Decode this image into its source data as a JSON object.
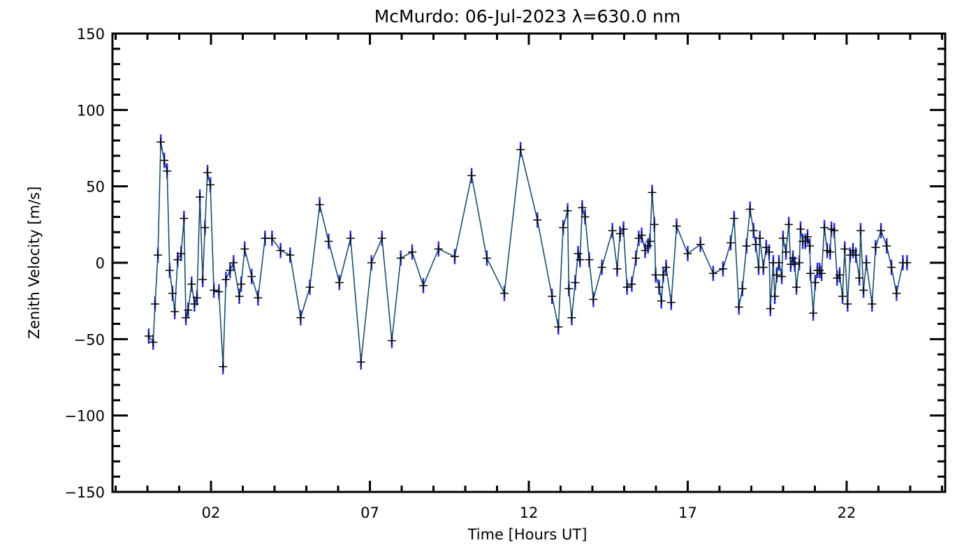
{
  "chart_data": {
    "type": "line",
    "title": "McMurdo: 06-Jul-2023 λ=630.0 nm",
    "xlabel": "Time [Hours UT]",
    "ylabel": "Zenith Velocity [m/s]",
    "xlim": [
      -1.1,
      25.1
    ],
    "ylim": [
      -150,
      150
    ],
    "x_ticks": [
      2,
      7,
      12,
      17,
      22
    ],
    "x_tick_labels": [
      "02",
      "07",
      "12",
      "17",
      "22"
    ],
    "x_minor_step": 1,
    "y_ticks": [
      -150,
      -100,
      -50,
      0,
      50,
      100,
      150
    ],
    "y_tick_labels": [
      "−150",
      "−100",
      "−50",
      "0",
      "50",
      "100",
      "150"
    ],
    "y_minor_step": 10,
    "grid": false,
    "error_default": 5,
    "colors": {
      "line": "#1b4d6b",
      "error": "#2b2bf5",
      "marker": "#000000",
      "axis": "#000000"
    },
    "series": [
      {
        "name": "Zenith Velocity",
        "x": [
          0.04,
          0.18,
          0.24,
          0.33,
          0.42,
          0.53,
          0.62,
          0.7,
          0.79,
          0.86,
          0.95,
          1.06,
          1.15,
          1.21,
          1.28,
          1.39,
          1.48,
          1.56,
          1.65,
          1.74,
          1.81,
          1.89,
          1.98,
          2.09,
          2.25,
          2.38,
          2.47,
          2.6,
          2.71,
          2.89,
          2.95,
          3.06,
          3.28,
          3.48,
          3.7,
          3.92,
          4.19,
          4.49,
          4.82,
          5.11,
          5.42,
          5.7,
          6.04,
          6.39,
          6.72,
          7.05,
          7.38,
          7.69,
          7.97,
          8.33,
          8.68,
          9.16,
          9.67,
          10.2,
          10.68,
          11.23,
          11.74,
          12.27,
          12.73,
          12.93,
          13.08,
          13.22,
          13.26,
          13.35,
          13.46,
          13.55,
          13.61,
          13.68,
          13.77,
          13.9,
          14.03,
          14.3,
          14.63,
          14.78,
          14.87,
          14.98,
          15.09,
          15.24,
          15.37,
          15.46,
          15.55,
          15.66,
          15.75,
          15.81,
          15.88,
          15.95,
          15.99,
          16.1,
          16.17,
          16.23,
          16.32,
          16.48,
          16.65,
          17.0,
          17.4,
          17.8,
          18.11,
          18.35,
          18.46,
          18.61,
          18.72,
          18.85,
          18.96,
          19.07,
          19.14,
          19.23,
          19.27,
          19.38,
          19.47,
          19.56,
          19.6,
          19.69,
          19.74,
          19.8,
          19.87,
          19.96,
          20.0,
          20.09,
          20.18,
          20.24,
          20.31,
          20.37,
          20.42,
          20.51,
          20.55,
          20.62,
          20.7,
          20.77,
          20.84,
          20.86,
          20.95,
          21.01,
          21.08,
          21.15,
          21.21,
          21.3,
          21.39,
          21.48,
          21.52,
          21.61,
          21.7,
          21.78,
          21.87,
          21.94,
          22.03,
          22.11,
          22.2,
          22.29,
          22.4,
          22.44,
          22.53,
          22.62,
          22.8,
          22.91,
          23.08,
          23.26,
          23.41,
          23.57,
          23.77,
          23.9
        ],
        "y": [
          -48,
          -52,
          -27,
          5,
          79,
          67,
          60,
          -5,
          -20,
          -32,
          2,
          6,
          29,
          -36,
          -31,
          -14,
          -27,
          -23,
          43,
          -11,
          23,
          59,
          51,
          -18,
          -19,
          -68,
          -11,
          -5,
          0,
          -22,
          -14,
          9,
          -9,
          -23,
          16,
          16,
          8,
          5,
          -36,
          -16,
          38,
          14,
          -13,
          16,
          -65,
          0,
          16,
          -51,
          3,
          7,
          -15,
          9,
          4,
          57,
          3,
          -20,
          74,
          28,
          -22,
          -42,
          23,
          34,
          -17,
          -36,
          -13,
          6,
          2,
          36,
          30,
          2,
          -24,
          -3,
          21,
          -4,
          19,
          22,
          -16,
          -14,
          3,
          16,
          18,
          8,
          11,
          14,
          46,
          25,
          -8,
          -16,
          -25,
          -8,
          -3,
          -26,
          24,
          6,
          12,
          -7,
          -4,
          13,
          29,
          -29,
          -17,
          11,
          35,
          21,
          12,
          -3,
          16,
          -3,
          10,
          7,
          -30,
          0,
          -22,
          -8,
          0,
          -9,
          16,
          7,
          25,
          -1,
          3,
          -1,
          -16,
          0,
          22,
          14,
          14,
          17,
          11,
          -7,
          -33,
          -13,
          -5,
          -5,
          -7,
          23,
          8,
          7,
          22,
          21,
          -10,
          -8,
          -22,
          9,
          -27,
          5,
          8,
          5,
          -10,
          21,
          -18,
          0,
          -27,
          10,
          21,
          11,
          -3,
          -20,
          0,
          0
        ]
      }
    ]
  }
}
